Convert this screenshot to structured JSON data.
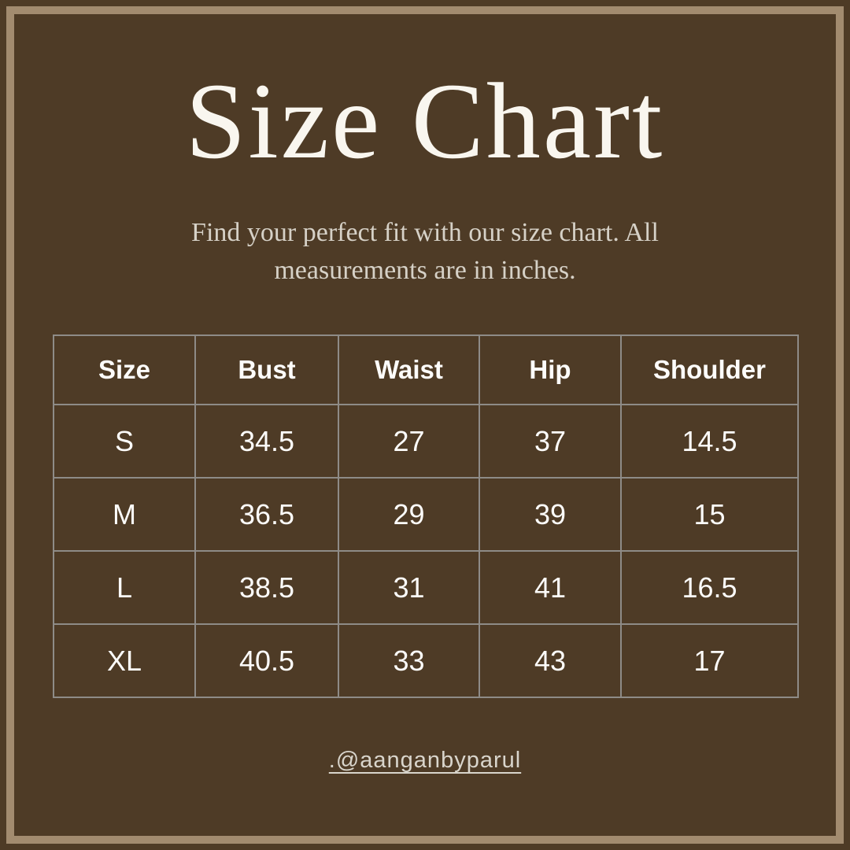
{
  "page": {
    "title": "Size Chart",
    "subtitle_lines": [
      "Find your perfect fit with our size chart. All",
      "measurements are in inches."
    ],
    "handle": ".@aanganbyparul"
  },
  "size_table": {
    "headers": [
      "Size",
      "Bust",
      "Waist",
      "Hip",
      "Shoulder"
    ],
    "rows": [
      [
        "S",
        "34.5",
        "27",
        "37",
        "14.5"
      ],
      [
        "M",
        "36.5",
        "29",
        "39",
        "15"
      ],
      [
        "L",
        "38.5",
        "31",
        "41",
        "16.5"
      ],
      [
        "XL",
        "40.5",
        "33",
        "43",
        "17"
      ]
    ]
  },
  "chart_data": {
    "type": "table",
    "title": "Size Chart",
    "subtitle": "Find your perfect fit with our size chart. All measurements are in inches.",
    "units": "inches",
    "columns": [
      "Size",
      "Bust",
      "Waist",
      "Hip",
      "Shoulder"
    ],
    "rows": [
      {
        "Size": "S",
        "Bust": 34.5,
        "Waist": 27,
        "Hip": 37,
        "Shoulder": 14.5
      },
      {
        "Size": "M",
        "Bust": 36.5,
        "Waist": 29,
        "Hip": 39,
        "Shoulder": 15
      },
      {
        "Size": "L",
        "Bust": 38.5,
        "Waist": 31,
        "Hip": 41,
        "Shoulder": 16.5
      },
      {
        "Size": "XL",
        "Bust": 40.5,
        "Waist": 33,
        "Hip": 43,
        "Shoulder": 17
      }
    ]
  },
  "colors": {
    "background": "#4e3b26",
    "frame_border": "#a28b6f",
    "table_border": "#8e8b87",
    "title_text": "#f9f6ef",
    "subtitle_text": "#d6d1c7",
    "table_text": "#fdfcfa",
    "handle_text": "#d9d5cc"
  }
}
